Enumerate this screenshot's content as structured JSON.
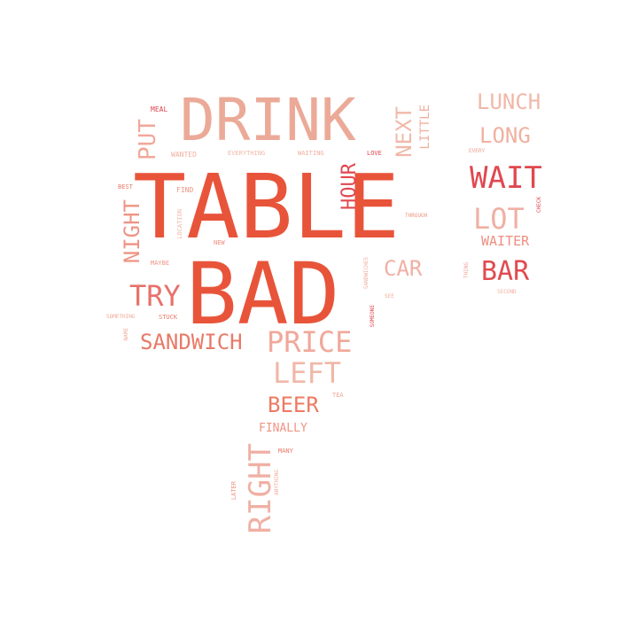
{
  "colors": {
    "primary": "#e8543a",
    "light": "#ebaa98",
    "mid": "#e87a68",
    "red": "#e04850",
    "pale": "#f0c0b4"
  },
  "words": {
    "table": "TABLE",
    "bad": "BAD",
    "drink": "DRINK",
    "lunch": "LUNCH",
    "long": "LONG",
    "wait": "WAIT",
    "lot": "LOT",
    "waiter": "WAITER",
    "bar": "BAR",
    "put": "PUT",
    "next": "NEXT",
    "little": "LITTLE",
    "hour": "HOUR",
    "night": "NIGHT",
    "try": "TRY",
    "car": "CAR",
    "sandwich": "SANDWICH",
    "price": "PRICE",
    "left": "LEFT",
    "beer": "BEER",
    "finally": "FINALLY",
    "right": "RIGHT",
    "meal": "MEAL",
    "wanted": "WANTED",
    "everything": "EVERYTHING",
    "waiting": "WAITING",
    "love": "LOVE",
    "find": "FIND",
    "location": "LOCATION",
    "new": "NEW",
    "maybe": "MAYBE",
    "through": "THROUGH",
    "someone": "SOMEONE",
    "something": "SOMETHING",
    "stuck": "STUCK",
    "name": "NAME",
    "many": "MANY",
    "tea": "TEA",
    "later": "LATER",
    "anything": "ANYTHING",
    "second": "SECOND",
    "check": "CHECK",
    "thing": "THING",
    "sandwiches": "SANDWICHES",
    "see": "SEE",
    "best": "BEST",
    "every": "EVERY"
  }
}
